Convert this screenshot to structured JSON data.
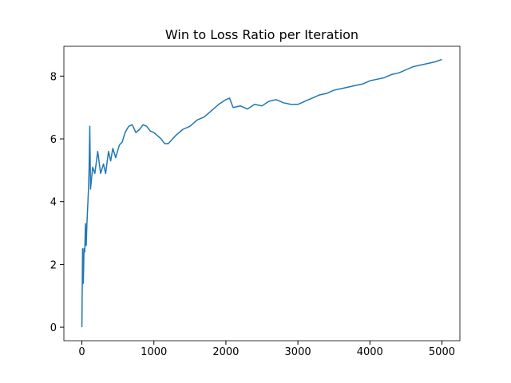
{
  "chart_data": {
    "type": "line",
    "title": "Win to Loss Ratio per Iteration",
    "x": [
      0,
      10,
      20,
      30,
      40,
      50,
      60,
      70,
      80,
      90,
      100,
      110,
      120,
      150,
      180,
      220,
      260,
      300,
      330,
      370,
      400,
      430,
      470,
      520,
      560,
      600,
      650,
      700,
      750,
      800,
      850,
      900,
      950,
      1000,
      1050,
      1100,
      1150,
      1200,
      1300,
      1400,
      1500,
      1600,
      1700,
      1800,
      1900,
      2000,
      2050,
      2100,
      2200,
      2300,
      2400,
      2500,
      2600,
      2700,
      2800,
      2900,
      3000,
      3100,
      3200,
      3300,
      3400,
      3500,
      3600,
      3700,
      3800,
      3900,
      4000,
      4100,
      4200,
      4300,
      4400,
      4500,
      4600,
      4700,
      4800,
      4900,
      5000
    ],
    "series": [
      {
        "color": "#1f77b4",
        "values": [
          0,
          2.5,
          1.4,
          2.5,
          2.4,
          3.3,
          2.6,
          3.3,
          3.8,
          4.3,
          5.0,
          6.4,
          4.4,
          5.1,
          4.9,
          5.6,
          4.9,
          5.2,
          4.9,
          5.6,
          5.3,
          5.7,
          5.4,
          5.8,
          5.9,
          6.2,
          6.4,
          6.45,
          6.2,
          6.3,
          6.45,
          6.4,
          6.25,
          6.2,
          6.1,
          6.0,
          5.85,
          5.85,
          6.1,
          6.3,
          6.4,
          6.6,
          6.7,
          6.9,
          7.1,
          7.25,
          7.3,
          7.0,
          7.05,
          6.95,
          7.1,
          7.05,
          7.2,
          7.25,
          7.15,
          7.1,
          7.1,
          7.2,
          7.3,
          7.4,
          7.45,
          7.55,
          7.6,
          7.65,
          7.7,
          7.75,
          7.85,
          7.9,
          7.95,
          8.05,
          8.1,
          8.2,
          8.3,
          8.35,
          8.4,
          8.45,
          8.53
        ]
      }
    ],
    "xlim": [
      -250,
      5250
    ],
    "ylim": [
      -0.43,
      8.95
    ],
    "xticks": [
      0,
      1000,
      2000,
      3000,
      4000,
      5000
    ],
    "yticks": [
      0,
      2,
      4,
      6,
      8
    ]
  }
}
